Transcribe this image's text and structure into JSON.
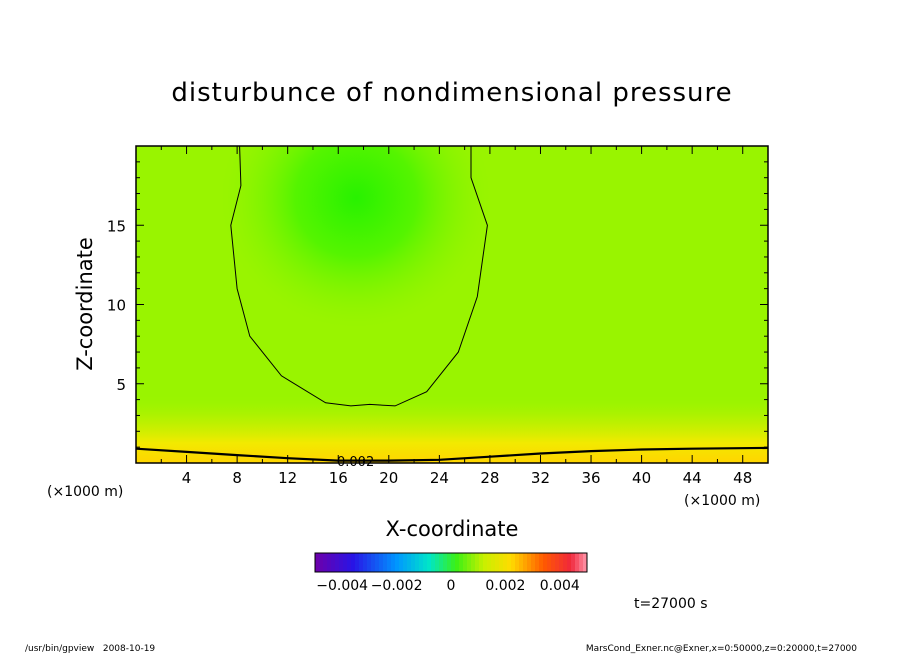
{
  "chart_data": {
    "type": "heatmap",
    "title": "disturbunce of nondimensional pressure",
    "xlabel": "X-coordinate",
    "ylabel": "Z-coordinate",
    "x_unit": "(×1000 m)",
    "y_unit": "(×1000 m)",
    "xlim": [
      0,
      50
    ],
    "ylim": [
      0,
      20
    ],
    "x_ticks": [
      4,
      8,
      12,
      16,
      20,
      24,
      28,
      32,
      36,
      40,
      44,
      48
    ],
    "y_ticks": [
      5,
      10,
      15
    ],
    "colorbar": {
      "min": -0.005,
      "max": 0.005,
      "tick_values": [
        -0.004,
        -0.002,
        0,
        0.002,
        0.004
      ],
      "tick_labels": [
        "−0.004",
        "−0.002",
        "0",
        "0.002",
        "0.004"
      ]
    },
    "field": {
      "background_value": 0.0009,
      "core": {
        "x": 17.5,
        "z": 16.5,
        "value": 0.0004
      },
      "surface_value": 0.0022
    },
    "contours": [
      {
        "level_label": "0.002",
        "points": [
          [
            0,
            0.9
          ],
          [
            4,
            0.7
          ],
          [
            8,
            0.5
          ],
          [
            12,
            0.3
          ],
          [
            16,
            0.15
          ],
          [
            20,
            0.15
          ],
          [
            24,
            0.2
          ],
          [
            28,
            0.4
          ],
          [
            32,
            0.6
          ],
          [
            36,
            0.75
          ],
          [
            40,
            0.85
          ],
          [
            44,
            0.9
          ],
          [
            50,
            0.95
          ]
        ]
      },
      {
        "level_label": "",
        "points": [
          [
            8.2,
            20
          ],
          [
            8.3,
            17.5
          ],
          [
            7.5,
            15.0
          ],
          [
            8.0,
            11.0
          ],
          [
            9.0,
            8.0
          ],
          [
            11.5,
            5.5
          ],
          [
            15.0,
            3.8
          ],
          [
            17.0,
            3.6
          ],
          [
            18.5,
            3.7
          ],
          [
            20.5,
            3.6
          ],
          [
            23.0,
            4.5
          ],
          [
            25.5,
            7.0
          ],
          [
            27.0,
            10.5
          ],
          [
            27.8,
            15.0
          ],
          [
            26.5,
            18.0
          ],
          [
            26.5,
            20
          ]
        ]
      }
    ]
  },
  "time_label": "t=27000 s",
  "footer": {
    "left": "/usr/bin/gpview   2008-10-19",
    "right": "MarsCond_Exner.nc@Exner,x=0:50000,z=0:20000,t=27000"
  }
}
